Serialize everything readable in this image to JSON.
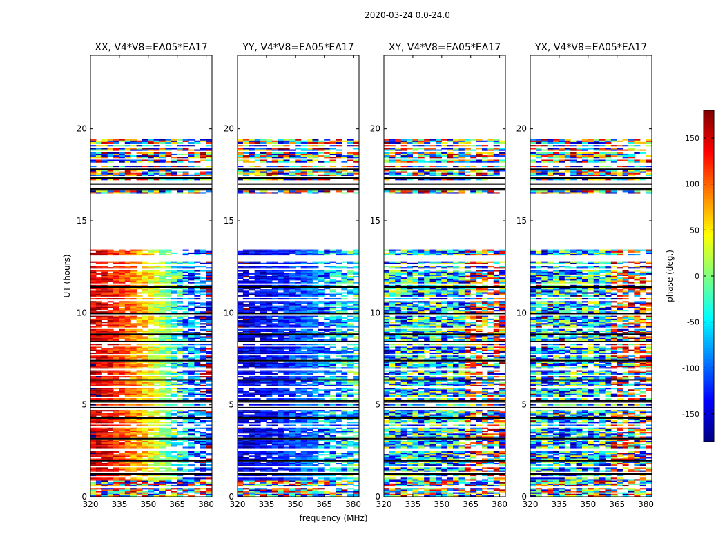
{
  "figure": {
    "suptitle": "2020-03-24 0.0-24.0",
    "xlabel": "frequency (MHz)",
    "ylabel": "UT (hours)"
  },
  "chart_data": {
    "type": "heatmap",
    "colormap": "jet",
    "xlim": [
      320,
      383
    ],
    "ylim": [
      0,
      24
    ],
    "x_ticks": [
      320,
      335,
      350,
      365,
      380
    ],
    "y_ticks": [
      0,
      5,
      10,
      15,
      20
    ],
    "panels": [
      {
        "title": "XX, V4*V8=EA05*EA17",
        "phase_low_freq": 150,
        "phase_high_freq": -170,
        "noise": 35
      },
      {
        "title": "YY, V4*V8=EA05*EA17",
        "phase_low_freq": -150,
        "phase_high_freq": -30,
        "noise": 35
      },
      {
        "title": "XY, V4*V8=EA05*EA17",
        "phase_low_freq": -60,
        "phase_high_freq": -40,
        "noise": 120
      },
      {
        "title": "YX, V4*V8=EA05*EA17",
        "phase_low_freq": -70,
        "phase_high_freq": -40,
        "noise": 120
      }
    ],
    "data_gaps_hours": [
      [
        13.4,
        16.0
      ],
      [
        19.4,
        24.0
      ]
    ],
    "colorbar": {
      "label": "phase (deg.)",
      "range": [
        -180,
        180
      ],
      "ticks": [
        -150,
        -100,
        -50,
        0,
        50,
        100,
        150
      ]
    }
  }
}
